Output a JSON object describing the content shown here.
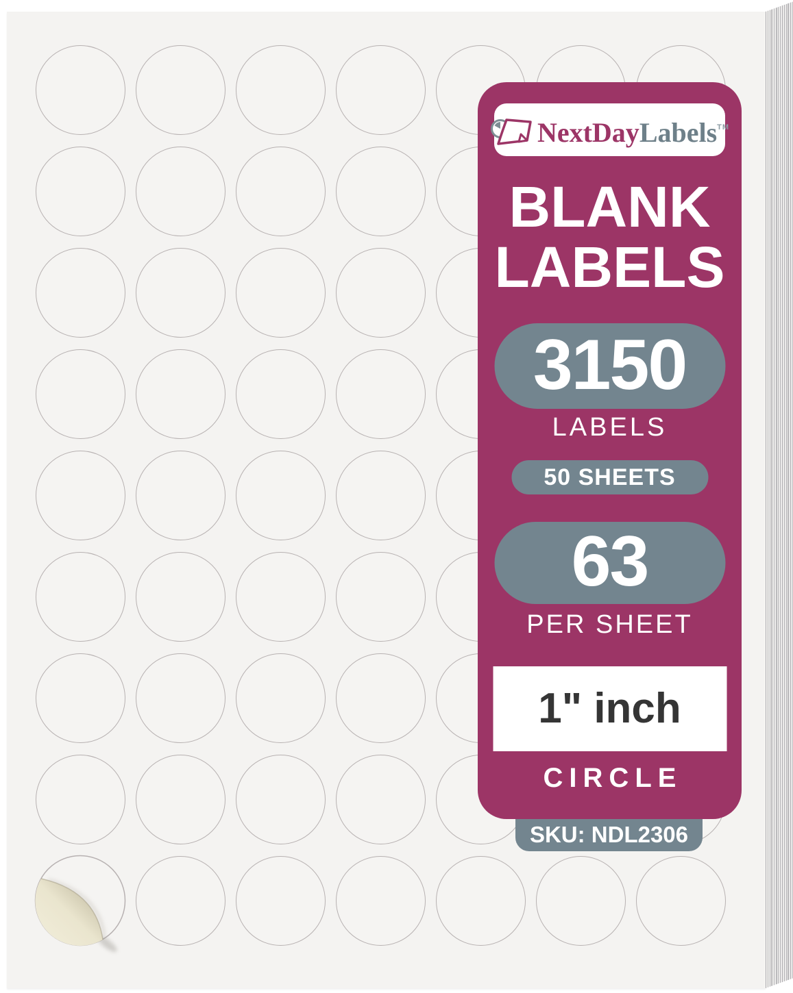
{
  "brand": {
    "part1": "NextDay",
    "part2": "Labels",
    "trademark": "TM"
  },
  "banner": {
    "title_line1": "BLANK",
    "title_line2": "LABELS",
    "labels_count": "3150",
    "labels_caption": "LABELS",
    "sheets_badge": "50 SHEETS",
    "per_sheet_count": "63",
    "per_sheet_caption": "PER SHEET",
    "size_badge": "1\" inch",
    "shape_label": "CIRCLE",
    "sku": "SKU: NDL2306"
  },
  "label_sheet": {
    "rows": 9,
    "columns": 7,
    "labels_per_sheet": 63,
    "shape": "circle",
    "peeling_label_position": "bottom-left"
  },
  "colors": {
    "banner": "#9C3566",
    "pill": "#73858F",
    "brand_magenta": "#9C3566",
    "brand_gray": "#6E8089",
    "sheet": "#F4F3F1",
    "circle_outline": "#B7B1B1",
    "size_text": "#353535",
    "peel_backing": "#EFEAD5"
  }
}
